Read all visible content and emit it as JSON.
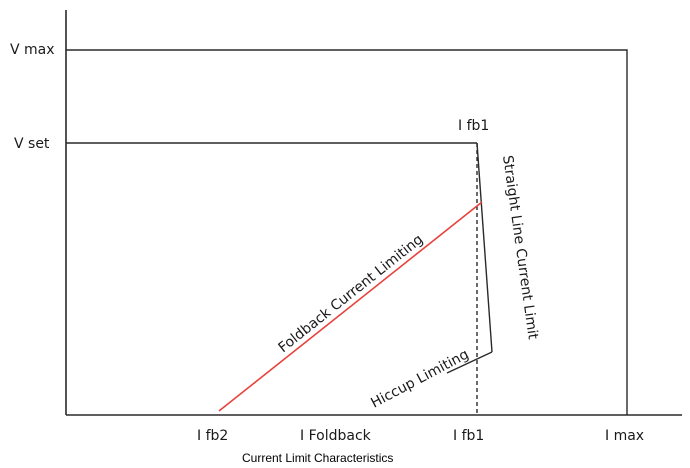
{
  "diagram": {
    "y_labels": {
      "v_max": "V max",
      "v_set": "V set"
    },
    "x_labels": {
      "i_fb2": "I fb2",
      "i_foldback": "I Foldback",
      "i_fb1": "I fb1",
      "i_max": "I max"
    },
    "point_labels": {
      "i_fb1_top": "I fb1"
    },
    "curve_labels": {
      "foldback": "Foldback Current Limiting",
      "straight_line": "Straight Line Current Limit",
      "hiccup": "Hiccup Limiting"
    },
    "caption": "Current Limit Characteristics",
    "colors": {
      "axes": "#2a2a2a",
      "foldback_line": "#e8413c",
      "text": "#1a1a1a"
    }
  }
}
